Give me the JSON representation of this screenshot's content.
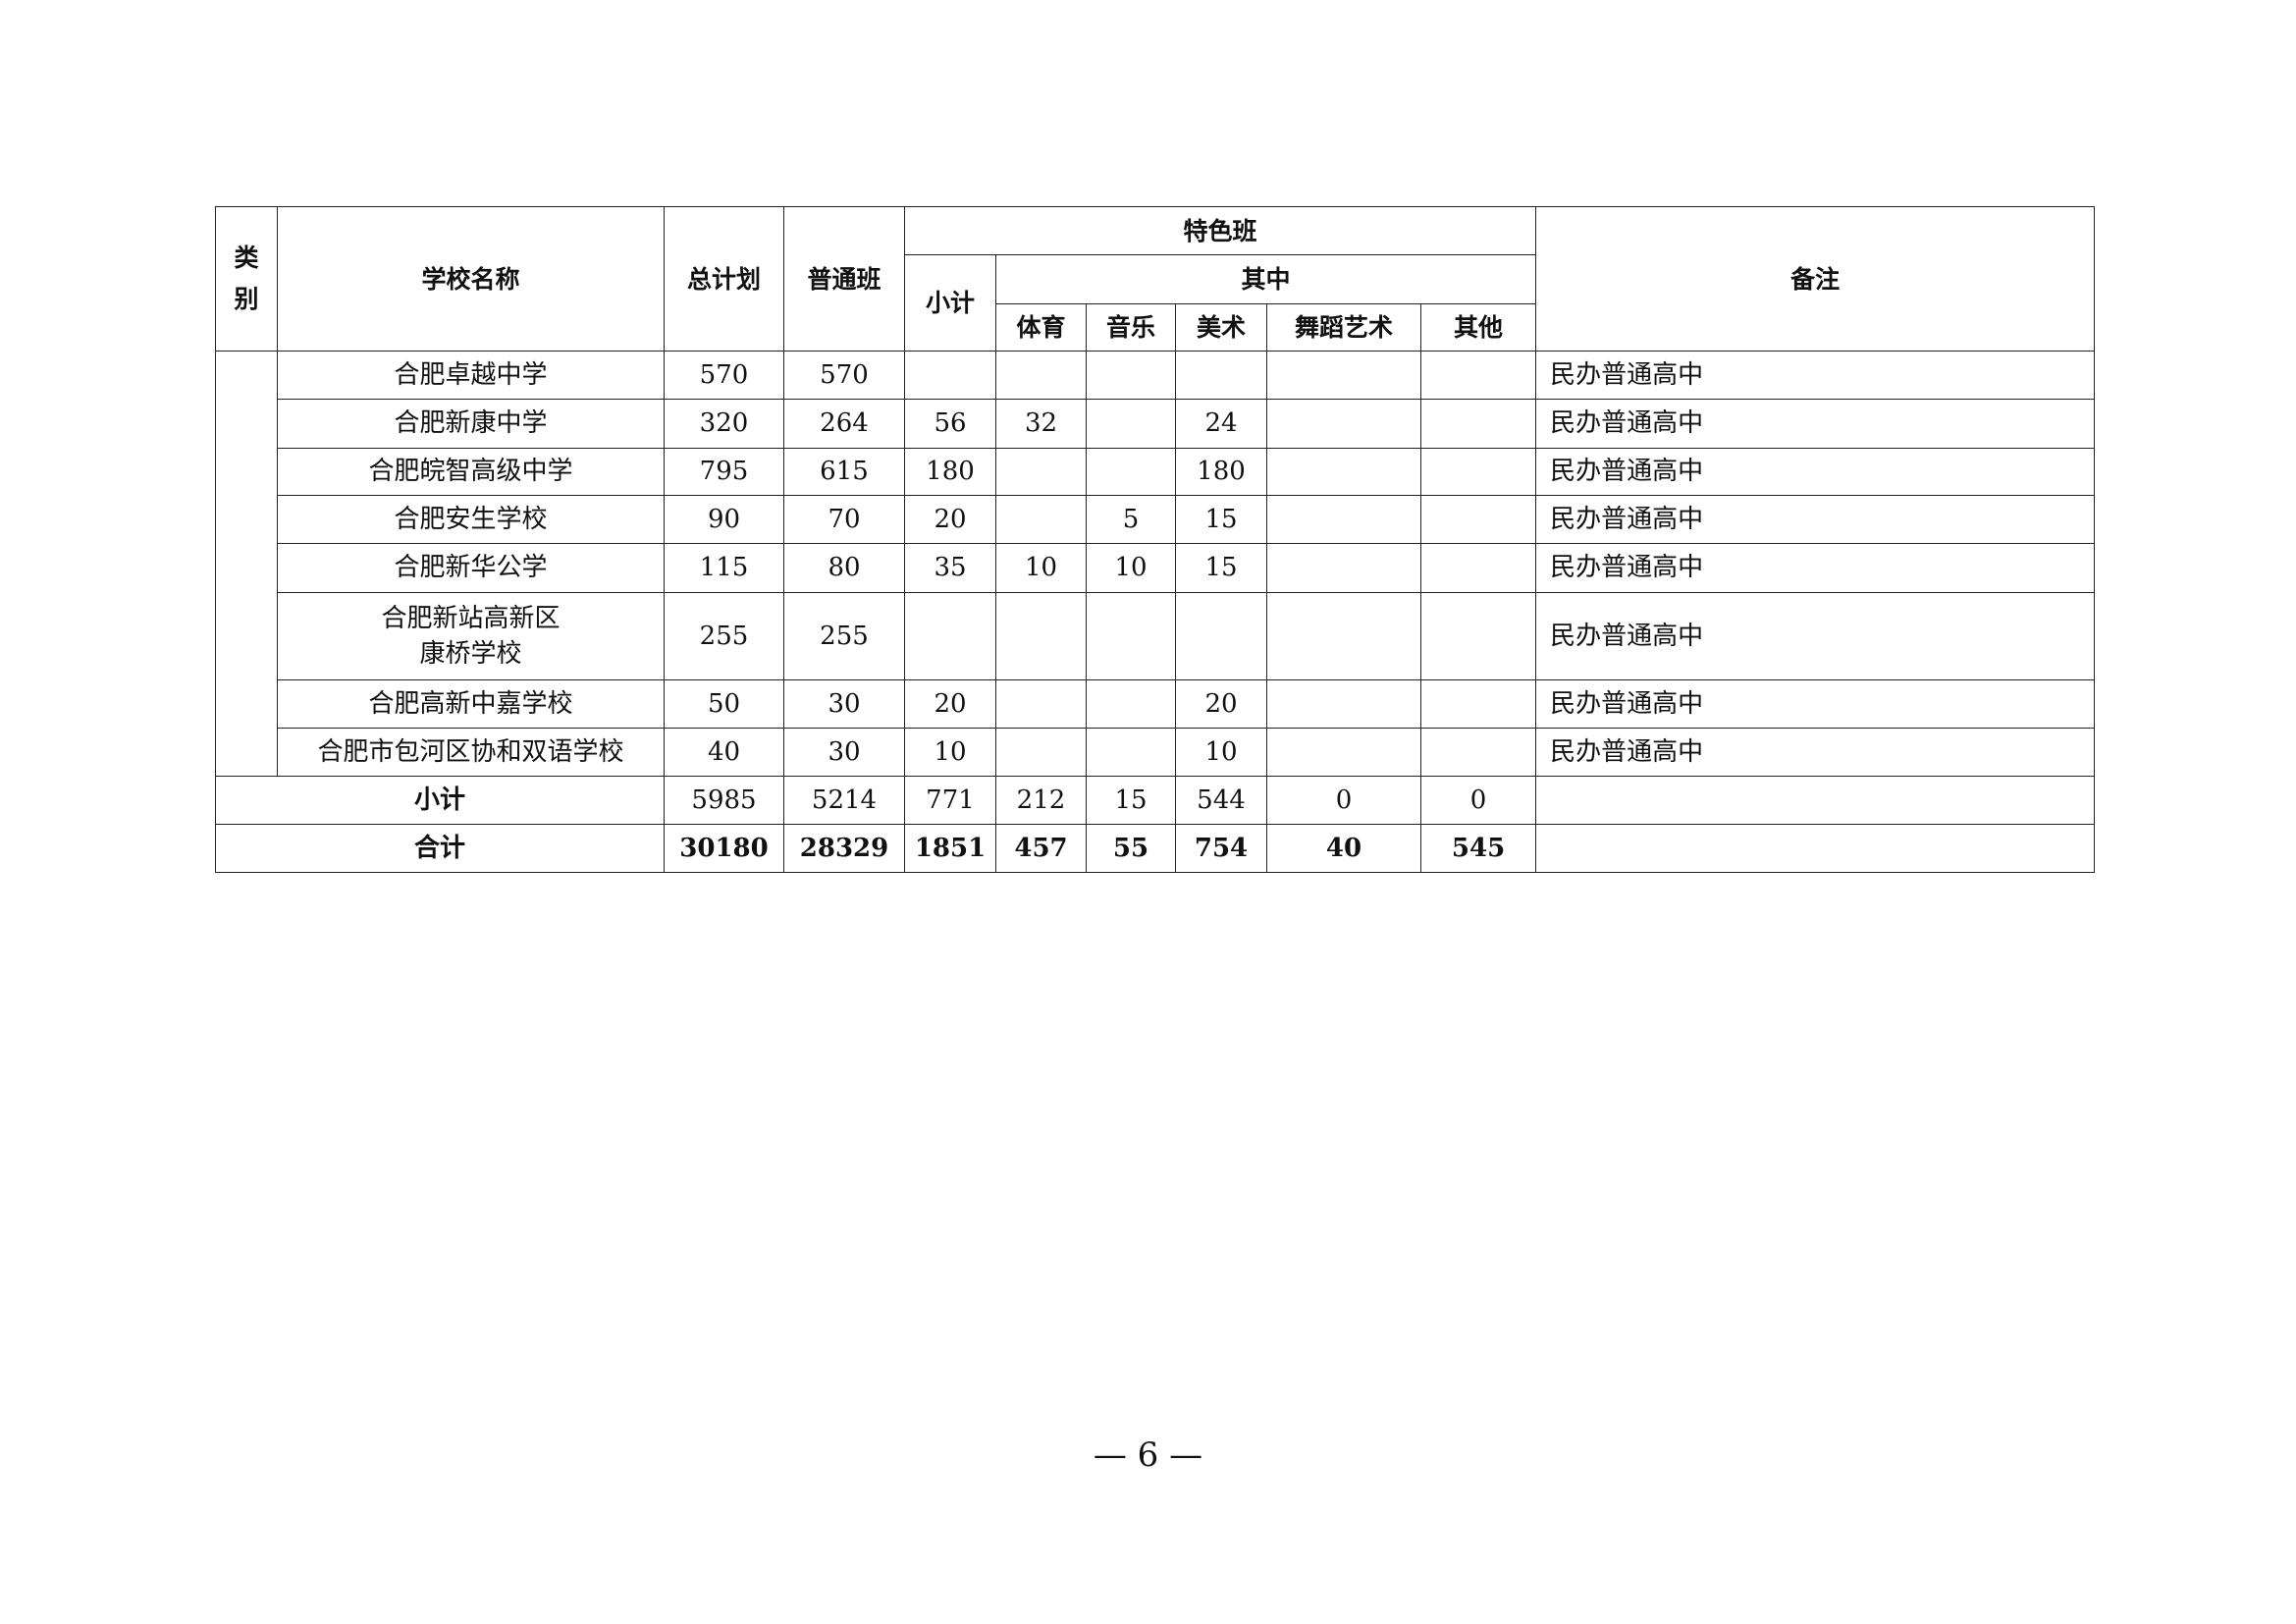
{
  "header": {
    "category": "类别",
    "school_name": "学校名称",
    "total_plan": "总计划",
    "regular_class": "普通班",
    "special_class": "特色班",
    "subtotal": "小计",
    "of_which": "其中",
    "sports": "体育",
    "music": "音乐",
    "art": "美术",
    "dance": "舞蹈艺术",
    "other": "其他",
    "remarks": "备注"
  },
  "rows": [
    {
      "name": "合肥卓越中学",
      "total": "570",
      "regular": "570",
      "sub": "",
      "sports": "",
      "music": "",
      "art": "",
      "dance": "",
      "other": "",
      "note": "民办普通高中"
    },
    {
      "name": "合肥新康中学",
      "total": "320",
      "regular": "264",
      "sub": "56",
      "sports": "32",
      "music": "",
      "art": "24",
      "dance": "",
      "other": "",
      "note": "民办普通高中"
    },
    {
      "name": "合肥皖智高级中学",
      "total": "795",
      "regular": "615",
      "sub": "180",
      "sports": "",
      "music": "",
      "art": "180",
      "dance": "",
      "other": "",
      "note": "民办普通高中"
    },
    {
      "name": "合肥安生学校",
      "total": "90",
      "regular": "70",
      "sub": "20",
      "sports": "",
      "music": "5",
      "art": "15",
      "dance": "",
      "other": "",
      "note": "民办普通高中"
    },
    {
      "name": "合肥新华公学",
      "total": "115",
      "regular": "80",
      "sub": "35",
      "sports": "10",
      "music": "10",
      "art": "15",
      "dance": "",
      "other": "",
      "note": "民办普通高中"
    },
    {
      "name": "合肥新站高新区",
      "name2": "康桥学校",
      "total": "255",
      "regular": "255",
      "sub": "",
      "sports": "",
      "music": "",
      "art": "",
      "dance": "",
      "other": "",
      "note": "民办普通高中"
    },
    {
      "name": "合肥高新中嘉学校",
      "total": "50",
      "regular": "30",
      "sub": "20",
      "sports": "",
      "music": "",
      "art": "20",
      "dance": "",
      "other": "",
      "note": "民办普通高中"
    },
    {
      "name": "合肥市包河区协和双语学校",
      "total": "40",
      "regular": "30",
      "sub": "10",
      "sports": "",
      "music": "",
      "art": "10",
      "dance": "",
      "other": "",
      "note": "民办普通高中"
    }
  ],
  "subtotal": {
    "label": "小计",
    "total": "5985",
    "regular": "5214",
    "sub": "771",
    "sports": "212",
    "music": "15",
    "art": "544",
    "dance": "0",
    "other": "0",
    "note": ""
  },
  "grand_total": {
    "label": "合计",
    "total": "30180",
    "regular": "28329",
    "sub": "1851",
    "sports": "457",
    "music": "55",
    "art": "754",
    "dance": "40",
    "other": "545",
    "note": ""
  },
  "page_number": "— 6 —"
}
